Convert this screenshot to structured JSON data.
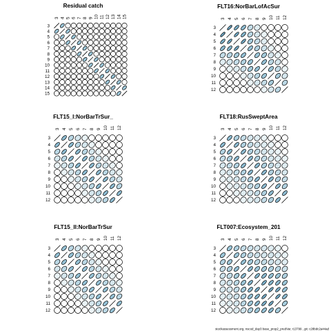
{
  "footer": "stockassessment.org, nscod_day3 base_prop2_predVar, r13799 , git: c28bdc2a44ad",
  "colors": {
    "fill": "#9cc6d8",
    "stroke": "#000000",
    "background": "#ffffff"
  },
  "chart_data": [
    {
      "type": "heatmap",
      "encoding": "ellipse-correlation",
      "title": "Residual catch",
      "labels": [
        "3",
        "4",
        "5",
        "6",
        "7",
        "8",
        "9",
        "10",
        "11",
        "12",
        "13",
        "14",
        "15"
      ],
      "corr": [
        [
          1,
          0.5,
          0,
          0,
          0,
          0,
          0,
          0,
          0,
          0,
          0,
          0,
          0
        ],
        [
          0.5,
          1,
          0.5,
          0,
          0,
          0,
          0,
          0,
          0,
          0,
          0,
          0,
          0
        ],
        [
          0,
          0.5,
          1,
          0.5,
          0,
          0,
          0,
          0,
          0,
          0,
          0,
          0,
          0
        ],
        [
          0,
          0,
          0.5,
          1,
          0.5,
          0,
          0,
          0,
          0,
          0,
          0,
          0,
          0
        ],
        [
          0,
          0,
          0,
          0.5,
          1,
          0.5,
          0,
          0,
          0,
          0,
          0,
          0,
          0
        ],
        [
          0,
          0,
          0,
          0,
          0.5,
          1,
          0.5,
          0,
          0,
          0,
          0,
          0,
          0
        ],
        [
          0,
          0,
          0,
          0,
          0,
          0.5,
          1,
          0.5,
          0,
          0,
          0,
          0,
          0
        ],
        [
          0,
          0,
          0,
          0,
          0,
          0,
          0.5,
          1,
          0.5,
          0,
          0,
          0,
          0
        ],
        [
          0,
          0,
          0,
          0,
          0,
          0,
          0,
          0.5,
          1,
          0.5,
          0,
          0,
          0
        ],
        [
          0,
          0,
          0,
          0,
          0,
          0,
          0,
          0,
          0.5,
          1,
          0.5,
          0,
          0
        ],
        [
          0,
          0,
          0,
          0,
          0,
          0,
          0,
          0,
          0,
          0.5,
          1,
          0.5,
          0
        ],
        [
          0,
          0,
          0,
          0,
          0,
          0,
          0,
          0,
          0,
          0,
          0.5,
          1,
          0.5
        ],
        [
          0,
          0,
          0,
          0,
          0,
          0,
          0,
          0,
          0,
          0,
          0,
          0.5,
          1
        ]
      ]
    },
    {
      "type": "heatmap",
      "encoding": "ellipse-correlation",
      "title": "FLT16:NorBarLofAcSur",
      "labels": [
        "3",
        "4",
        "5",
        "6",
        "7",
        "8",
        "9",
        "10",
        "11",
        "12"
      ],
      "corr": [
        [
          1,
          0.8,
          0.7,
          0.6,
          0.3,
          0.15,
          0.05,
          0,
          0,
          0
        ],
        [
          0.8,
          1,
          0.75,
          0.65,
          0.35,
          0.2,
          0.1,
          0,
          0,
          0
        ],
        [
          0.7,
          0.75,
          1,
          0.75,
          0.45,
          0.3,
          0.15,
          0.05,
          0,
          0
        ],
        [
          0.6,
          0.65,
          0.75,
          1,
          0.55,
          0.4,
          0.25,
          0.1,
          0,
          0
        ],
        [
          0.3,
          0.35,
          0.45,
          0.55,
          1,
          0.5,
          0.45,
          0.2,
          0.1,
          0
        ],
        [
          0.15,
          0.2,
          0.3,
          0.4,
          0.5,
          1,
          0.55,
          0.35,
          0.2,
          0.05
        ],
        [
          0.05,
          0.1,
          0.15,
          0.25,
          0.45,
          0.55,
          1,
          0.5,
          0.3,
          0.1
        ],
        [
          0,
          0,
          0.05,
          0.1,
          0.2,
          0.35,
          0.5,
          1,
          0.45,
          0.2
        ],
        [
          0,
          0,
          0,
          0,
          0.1,
          0.2,
          0.3,
          0.45,
          1,
          0.35
        ],
        [
          0,
          0,
          0,
          0,
          0,
          0.05,
          0.1,
          0.2,
          0.35,
          1
        ]
      ]
    },
    {
      "type": "heatmap",
      "encoding": "ellipse-correlation",
      "title": "FLT15_I:NorBarTrSur_",
      "labels": [
        "3",
        "4",
        "5",
        "6",
        "7",
        "8",
        "9",
        "10",
        "11",
        "12"
      ],
      "corr": [
        [
          1,
          0.6,
          0.35,
          0.2,
          0.1,
          0,
          0,
          0,
          0,
          0
        ],
        [
          0.6,
          1,
          0.6,
          0.35,
          0.2,
          0.1,
          0,
          0,
          0,
          0
        ],
        [
          0.35,
          0.6,
          1,
          0.6,
          0.35,
          0.2,
          0.1,
          0,
          0,
          0
        ],
        [
          0.2,
          0.35,
          0.6,
          1,
          0.6,
          0.35,
          0.2,
          0.1,
          0,
          0
        ],
        [
          0.1,
          0.2,
          0.35,
          0.6,
          1,
          0.6,
          0.35,
          0.2,
          0.1,
          0
        ],
        [
          0,
          0.1,
          0.2,
          0.35,
          0.6,
          1,
          0.6,
          0.35,
          0.2,
          0.1
        ],
        [
          0,
          0,
          0.1,
          0.2,
          0.35,
          0.6,
          1,
          0.6,
          0.35,
          0.2
        ],
        [
          0,
          0,
          0,
          0.1,
          0.2,
          0.35,
          0.6,
          1,
          0.6,
          0.35
        ],
        [
          0,
          0,
          0,
          0,
          0.1,
          0.2,
          0.35,
          0.6,
          1,
          0.6
        ],
        [
          0,
          0,
          0,
          0,
          0,
          0.1,
          0.2,
          0.35,
          0.6,
          1
        ]
      ]
    },
    {
      "type": "heatmap",
      "encoding": "ellipse-correlation",
      "title": "FLT18:RusSweptArea",
      "labels": [
        "3",
        "4",
        "5",
        "6",
        "7",
        "8",
        "9",
        "10",
        "11",
        "12"
      ],
      "corr": [
        [
          1,
          0.6,
          0.4,
          0.3,
          0.2,
          0.15,
          0.1,
          0.05,
          0,
          0
        ],
        [
          0.6,
          1,
          0.6,
          0.4,
          0.3,
          0.2,
          0.15,
          0.1,
          0.05,
          0
        ],
        [
          0.4,
          0.6,
          1,
          0.6,
          0.4,
          0.3,
          0.2,
          0.15,
          0.1,
          0.05
        ],
        [
          0.3,
          0.4,
          0.6,
          1,
          0.6,
          0.4,
          0.3,
          0.2,
          0.15,
          0.1
        ],
        [
          0.2,
          0.3,
          0.4,
          0.6,
          1,
          0.6,
          0.4,
          0.3,
          0.2,
          0.15
        ],
        [
          0.15,
          0.2,
          0.3,
          0.4,
          0.6,
          1,
          0.6,
          0.4,
          0.3,
          0.2
        ],
        [
          0.1,
          0.15,
          0.2,
          0.3,
          0.4,
          0.6,
          1,
          0.6,
          0.4,
          0.3
        ],
        [
          0.05,
          0.1,
          0.15,
          0.2,
          0.3,
          0.4,
          0.6,
          1,
          0.6,
          0.4
        ],
        [
          0,
          0.05,
          0.1,
          0.15,
          0.2,
          0.3,
          0.4,
          0.6,
          1,
          0.6
        ],
        [
          0,
          0,
          0.05,
          0.1,
          0.15,
          0.2,
          0.3,
          0.4,
          0.6,
          1
        ]
      ]
    },
    {
      "type": "heatmap",
      "encoding": "ellipse-correlation",
      "title": "FLT15_II:NorBarTrSur",
      "labels": [
        "3",
        "4",
        "5",
        "6",
        "7",
        "8",
        "9",
        "10",
        "11",
        "12"
      ],
      "corr": [
        [
          1,
          0.55,
          0.35,
          0.2,
          0.1,
          0,
          0,
          0,
          0,
          0
        ],
        [
          0.55,
          1,
          0.55,
          0.35,
          0.2,
          0.1,
          0,
          0,
          0,
          0
        ],
        [
          0.35,
          0.55,
          1,
          0.55,
          0.35,
          0.2,
          0.1,
          0,
          0,
          0
        ],
        [
          0.2,
          0.35,
          0.55,
          1,
          0.55,
          0.35,
          0.2,
          0.1,
          0,
          0
        ],
        [
          0.1,
          0.2,
          0.35,
          0.55,
          1,
          0.55,
          0.35,
          0.2,
          0.1,
          0
        ],
        [
          0,
          0.1,
          0.2,
          0.35,
          0.55,
          1,
          0.55,
          0.35,
          0.2,
          0.1
        ],
        [
          0,
          0,
          0.1,
          0.2,
          0.35,
          0.55,
          1,
          0.55,
          0.35,
          0.2
        ],
        [
          0,
          0,
          0,
          0.1,
          0.2,
          0.35,
          0.55,
          1,
          0.55,
          0.35
        ],
        [
          0,
          0,
          0,
          0,
          0.1,
          0.2,
          0.35,
          0.55,
          1,
          0.55
        ],
        [
          0,
          0,
          0,
          0,
          0,
          0.1,
          0.2,
          0.35,
          0.55,
          1
        ]
      ]
    },
    {
      "type": "heatmap",
      "encoding": "ellipse-correlation",
      "title": "FLT007:Ecosystem_201",
      "labels": [
        "3",
        "4",
        "5",
        "6",
        "7",
        "8",
        "9",
        "10",
        "11",
        "12"
      ],
      "corr": [
        [
          1,
          0.5,
          0.4,
          0.3,
          0.25,
          0.2,
          0.2,
          0.15,
          0.1,
          0
        ],
        [
          0.5,
          1,
          0.5,
          0.4,
          0.3,
          0.25,
          0.2,
          0.2,
          0.15,
          0.1
        ],
        [
          0.4,
          0.5,
          1,
          0.55,
          0.45,
          0.35,
          0.3,
          0.25,
          0.2,
          0.15
        ],
        [
          0.3,
          0.4,
          0.55,
          1,
          0.6,
          0.5,
          0.45,
          0.4,
          0.35,
          0.25
        ],
        [
          0.25,
          0.3,
          0.45,
          0.6,
          1,
          0.65,
          0.6,
          0.55,
          0.5,
          0.4
        ],
        [
          0.2,
          0.25,
          0.35,
          0.5,
          0.65,
          1,
          0.7,
          0.65,
          0.6,
          0.5
        ],
        [
          0.2,
          0.2,
          0.3,
          0.45,
          0.6,
          0.7,
          1,
          0.75,
          0.7,
          0.55
        ],
        [
          0.15,
          0.2,
          0.25,
          0.4,
          0.55,
          0.65,
          0.75,
          1,
          0.75,
          0.6
        ],
        [
          0.1,
          0.15,
          0.2,
          0.35,
          0.5,
          0.6,
          0.7,
          0.75,
          1,
          0.45
        ],
        [
          0,
          0.1,
          0.15,
          0.25,
          0.4,
          0.5,
          0.55,
          0.6,
          0.45,
          1
        ]
      ]
    }
  ]
}
